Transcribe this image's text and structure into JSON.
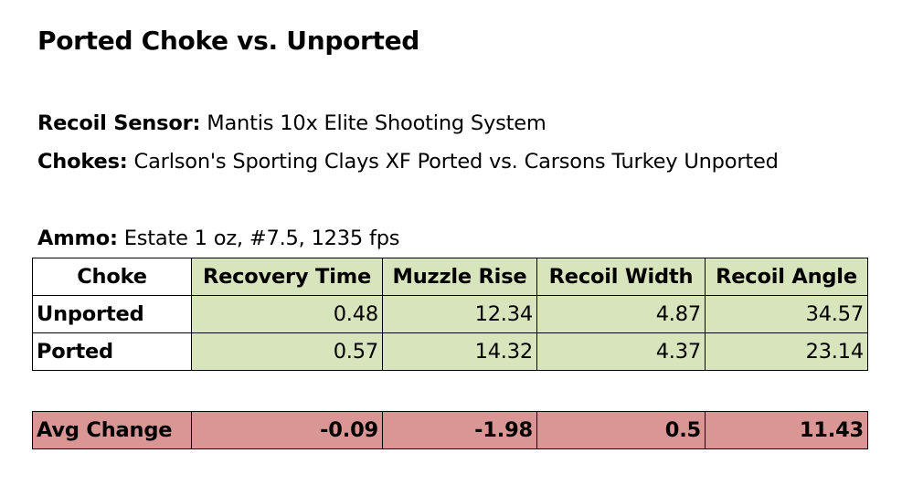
{
  "title": "Ported Choke vs. Unported",
  "sensor": {
    "label": "Recoil Sensor:",
    "value": " Mantis 10x Elite Shooting System"
  },
  "chokes": {
    "label": "Chokes:",
    "value": " Carlson's Sporting Clays XF Ported vs. Carsons Turkey Unported"
  },
  "ammo": {
    "label": "Ammo:",
    "value": " Estate 1 oz, #7.5, 1235 fps"
  },
  "table": {
    "headers": [
      "Choke",
      "Recovery Time",
      "Muzzle Rise",
      "Recoil Width",
      "Recoil Angle"
    ],
    "rows": [
      {
        "label": "Unported",
        "values": [
          "0.48",
          "12.34",
          "4.87",
          "34.57"
        ]
      },
      {
        "label": "Ported",
        "values": [
          "0.57",
          "14.32",
          "4.37",
          "23.14"
        ]
      }
    ]
  },
  "change": {
    "label": "Avg Change",
    "values": [
      "-0.09",
      "-1.98",
      "0.5",
      "11.43"
    ]
  },
  "colors": {
    "metric_fill": "#d8e4bc",
    "change_fill": "#da9694"
  }
}
